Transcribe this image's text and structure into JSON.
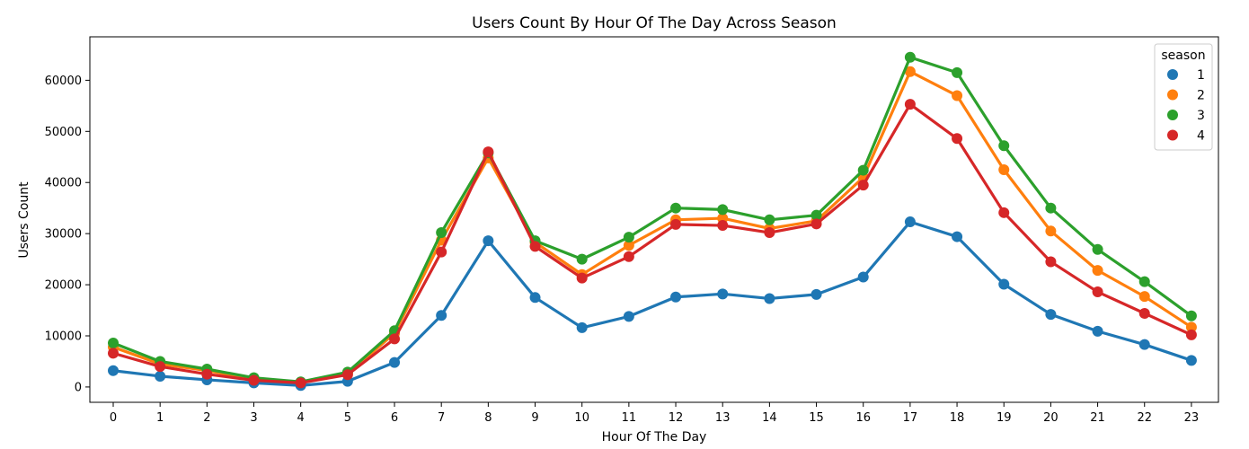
{
  "chart_data": {
    "type": "line",
    "title": "Users Count By Hour Of The Day Across Season",
    "xlabel": "Hour Of The Day",
    "ylabel": "Users Count",
    "categories": [
      "0",
      "1",
      "2",
      "3",
      "4",
      "5",
      "6",
      "7",
      "8",
      "9",
      "10",
      "11",
      "12",
      "13",
      "14",
      "15",
      "16",
      "17",
      "18",
      "19",
      "20",
      "21",
      "22",
      "23"
    ],
    "ylim": [
      -3000,
      68500
    ],
    "yticks": [
      0,
      10000,
      20000,
      30000,
      40000,
      50000,
      60000
    ],
    "grid": false,
    "legend": {
      "title": "season",
      "placement": "top-right"
    },
    "series": [
      {
        "name": "1",
        "color": "#1f77b4",
        "values": [
          3200,
          2100,
          1400,
          800,
          300,
          1100,
          4800,
          14000,
          28600,
          17500,
          11600,
          13800,
          17600,
          18200,
          17300,
          18100,
          21500,
          32300,
          29400,
          20100,
          14200,
          10900,
          8300,
          5200
        ]
      },
      {
        "name": "2",
        "color": "#ff7f0e",
        "values": [
          7800,
          4500,
          3200,
          1500,
          900,
          2600,
          10500,
          28700,
          44800,
          28300,
          22000,
          27700,
          32700,
          33000,
          31000,
          32500,
          41000,
          61700,
          57000,
          42500,
          30500,
          22800,
          17700,
          11700
        ]
      },
      {
        "name": "3",
        "color": "#2ca02c",
        "values": [
          8600,
          5000,
          3500,
          1800,
          1000,
          2900,
          11000,
          30200,
          45800,
          28600,
          25000,
          29300,
          35000,
          34700,
          32700,
          33600,
          42400,
          64500,
          61500,
          47200,
          35000,
          26900,
          20600,
          13900
        ]
      },
      {
        "name": "4",
        "color": "#d62728",
        "values": [
          6600,
          4000,
          2500,
          1300,
          800,
          2400,
          9400,
          26400,
          46000,
          27500,
          21300,
          25500,
          31800,
          31600,
          30200,
          31900,
          39500,
          55300,
          48600,
          34100,
          24500,
          18600,
          14400,
          10200
        ]
      }
    ]
  }
}
